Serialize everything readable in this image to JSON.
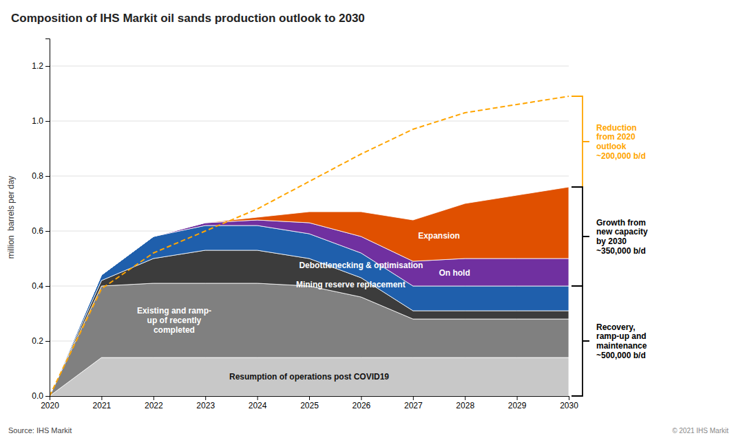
{
  "chart_data": {
    "type": "area",
    "stacked": true,
    "title": "Composition of IHS Markit oil sands production outlook to 2030",
    "y_label": "million  barrels per day",
    "source": "Source: IHS Markit",
    "copyright": "© 2021 IHS Markit",
    "x": [
      2020,
      2021,
      2022,
      2023,
      2024,
      2025,
      2026,
      2027,
      2028,
      2029,
      2030
    ],
    "xlim": [
      2020,
      2030
    ],
    "xticks": [
      2020,
      2021,
      2022,
      2023,
      2024,
      2025,
      2026,
      2027,
      2028,
      2029,
      2030
    ],
    "ylim": [
      0,
      1.3
    ],
    "yticks": [
      {
        "value": 0,
        "label": "0.0"
      },
      0.2,
      0.4,
      0.6,
      0.8,
      {
        "value": 1,
        "label": "1.0"
      },
      1.2
    ],
    "grid": true,
    "series": [
      {
        "name": "Resumption of operations post COVID19",
        "color": "#c8c8c8",
        "values": [
          0.0,
          0.14,
          0.14,
          0.14,
          0.14,
          0.14,
          0.14,
          0.14,
          0.14,
          0.14,
          0.14
        ]
      },
      {
        "name": "Existing and ramp-\nup of recently\ncompleted",
        "color": "#808080",
        "values": [
          0.0,
          0.26,
          0.27,
          0.27,
          0.27,
          0.26,
          0.22,
          0.14,
          0.14,
          0.14,
          0.14
        ]
      },
      {
        "name": "Mining reserve replacement",
        "color": "#3c3c3c",
        "values": [
          0.0,
          0.02,
          0.09,
          0.12,
          0.12,
          0.1,
          0.07,
          0.03,
          0.03,
          0.03,
          0.03
        ]
      },
      {
        "name": "Debottlenecking & optimisation",
        "color": "#1f5fac",
        "values": [
          0.0,
          0.02,
          0.08,
          0.09,
          0.09,
          0.09,
          0.09,
          0.09,
          0.09,
          0.09,
          0.09
        ]
      },
      {
        "name": "On hold",
        "color": "#7030a0",
        "values": [
          0.0,
          0.0,
          0.0,
          0.01,
          0.02,
          0.04,
          0.06,
          0.09,
          0.1,
          0.1,
          0.1
        ]
      },
      {
        "name": "Expansion",
        "color": "#e05000",
        "values": [
          0.0,
          0.0,
          0.0,
          0.0,
          0.01,
          0.04,
          0.09,
          0.15,
          0.2,
          0.23,
          0.26
        ]
      },
      {
        "type": "line",
        "line_style": "dashed",
        "color": "#ffa500",
        "values": [
          0.0,
          0.39,
          0.52,
          0.6,
          0.68,
          0.78,
          0.88,
          0.97,
          1.03,
          1.06,
          1.09
        ]
      }
    ],
    "annotations": [
      {
        "text": "Reduction\nfrom 2020\noutlook\n~200,000 b/d",
        "color": "#ffa500",
        "y_low": 0.76,
        "y_high": 1.09
      },
      {
        "text": "Growth from\nnew capacity\nby 2030\n~350,000 b/d",
        "color": "#000000",
        "y_low": 0.4,
        "y_high": 0.76
      },
      {
        "text": "Recovery,\nramp-up and\nmaintenance\n~500,000 b/d",
        "color": "#000000",
        "y_low": 0.0,
        "y_high": 0.4
      }
    ]
  }
}
